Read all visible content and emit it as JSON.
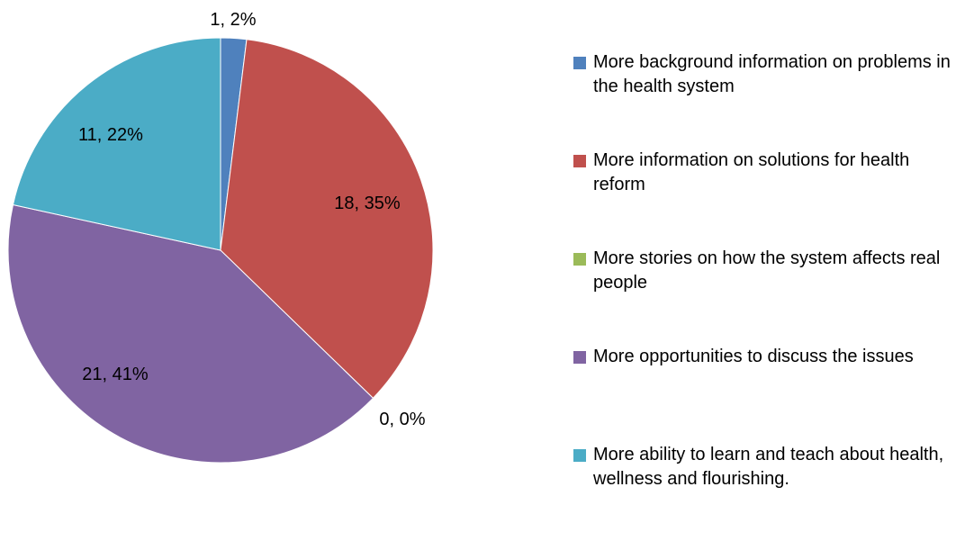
{
  "chart_data": {
    "type": "pie",
    "title": "",
    "legend_position": "right",
    "slices": [
      {
        "label": "More background information on problems in the health system",
        "value": 1,
        "percent": "2%",
        "data_label": "1, 2%",
        "color": "#4F81BD"
      },
      {
        "label": "More information on solutions for health reform",
        "value": 18,
        "percent": "35%",
        "data_label": "18, 35%",
        "color": "#C0504D"
      },
      {
        "label": "More stories on how the system affects real people",
        "value": 0,
        "percent": "0%",
        "data_label": "0, 0%",
        "color": "#9BBB59"
      },
      {
        "label": "More opportunities to discuss the issues",
        "value": 21,
        "percent": "41%",
        "data_label": "21, 41%",
        "color": "#8064A2"
      },
      {
        "label": "More ability to learn and teach about health, wellness and flourishing.",
        "value": 11,
        "percent": "22%",
        "data_label": "11, 22%",
        "color": "#4BACC6"
      }
    ]
  }
}
